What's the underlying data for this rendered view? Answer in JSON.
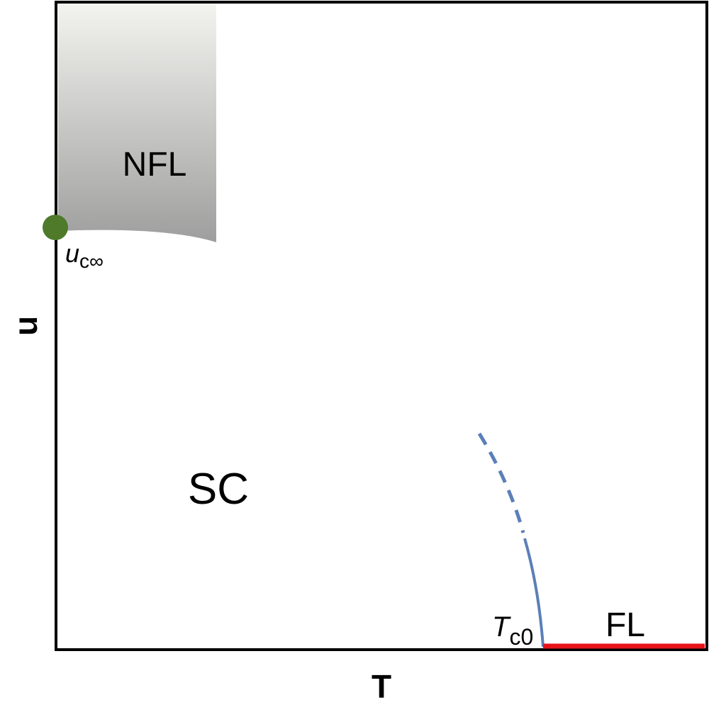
{
  "axes": {
    "x_label": "T",
    "y_label": "u"
  },
  "regions": [
    {
      "label": "NFL"
    },
    {
      "label": "SC"
    },
    {
      "label": "FL"
    }
  ],
  "points": [
    {
      "symbol": "u",
      "subscript": "c∞"
    },
    {
      "symbol": "T",
      "subscript": "c0"
    }
  ]
}
